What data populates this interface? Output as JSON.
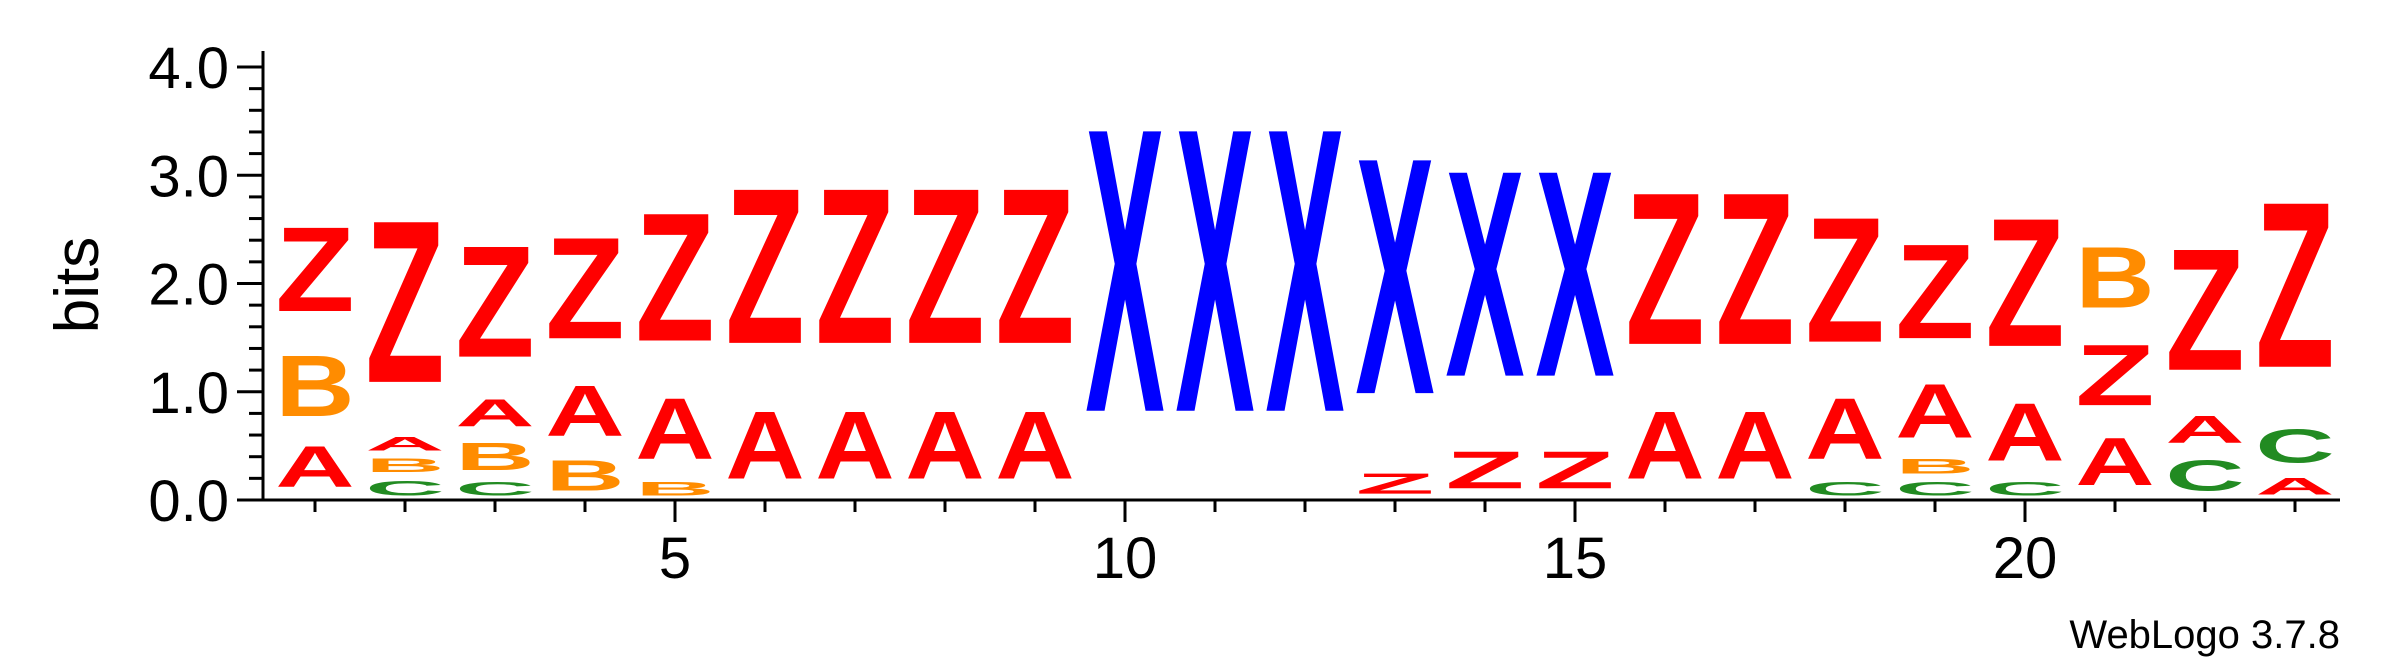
{
  "chart_data": {
    "type": "sequence-logo",
    "ylabel": "bits",
    "ylim": [
      0,
      4.0
    ],
    "y_ticks": [
      "0.0",
      "1.0",
      "2.0",
      "3.0",
      "4.0"
    ],
    "x_ticks": [
      5,
      10,
      15,
      20
    ],
    "x_range": [
      1,
      23
    ],
    "watermark": "WebLogo 3.7.8",
    "colors": {
      "A": "#ff0000",
      "Z": "#ff0000",
      "B": "#ff8c00",
      "C": "#228b22",
      "X": "#0000ff"
    },
    "positions": [
      {
        "pos": 1,
        "stack": [
          [
            "A",
            0.6
          ],
          [
            "B",
            0.9
          ],
          [
            "Z",
            1.25
          ]
        ]
      },
      {
        "pos": 2,
        "stack": [
          [
            "C",
            0.22
          ],
          [
            "B",
            0.2
          ],
          [
            "A",
            0.2
          ],
          [
            "Z",
            2.4
          ]
        ]
      },
      {
        "pos": 3,
        "stack": [
          [
            "C",
            0.2
          ],
          [
            "B",
            0.4
          ],
          [
            "A",
            0.4
          ],
          [
            "Z",
            1.65
          ]
        ]
      },
      {
        "pos": 4,
        "stack": [
          [
            "B",
            0.45
          ],
          [
            "A",
            0.75
          ],
          [
            "Z",
            1.5
          ]
        ]
      },
      {
        "pos": 5,
        "stack": [
          [
            "B",
            0.2
          ],
          [
            "A",
            0.9
          ],
          [
            "Z",
            1.9
          ]
        ]
      },
      {
        "pos": 6,
        "stack": [
          [
            "A",
            1.0
          ],
          [
            "Z",
            2.3
          ]
        ]
      },
      {
        "pos": 7,
        "stack": [
          [
            "A",
            1.0
          ],
          [
            "Z",
            2.3
          ]
        ]
      },
      {
        "pos": 8,
        "stack": [
          [
            "A",
            1.0
          ],
          [
            "Z",
            2.3
          ]
        ]
      },
      {
        "pos": 9,
        "stack": [
          [
            "A",
            1.0
          ],
          [
            "Z",
            2.3
          ]
        ]
      },
      {
        "pos": 10,
        "stack": [
          [
            "X",
            4.2
          ]
        ]
      },
      {
        "pos": 11,
        "stack": [
          [
            "X",
            4.2
          ]
        ]
      },
      {
        "pos": 12,
        "stack": [
          [
            "X",
            4.2
          ]
        ]
      },
      {
        "pos": 13,
        "stack": [
          [
            "Z",
            0.3
          ],
          [
            "X",
            3.5
          ]
        ]
      },
      {
        "pos": 14,
        "stack": [
          [
            "Z",
            0.55
          ],
          [
            "X",
            3.05
          ]
        ]
      },
      {
        "pos": 15,
        "stack": [
          [
            "Z",
            0.55
          ],
          [
            "X",
            3.05
          ]
        ]
      },
      {
        "pos": 16,
        "stack": [
          [
            "A",
            1.0
          ],
          [
            "Z",
            2.25
          ]
        ]
      },
      {
        "pos": 17,
        "stack": [
          [
            "A",
            1.0
          ],
          [
            "Z",
            2.25
          ]
        ]
      },
      {
        "pos": 18,
        "stack": [
          [
            "C",
            0.2
          ],
          [
            "A",
            0.9
          ],
          [
            "Z",
            1.85
          ]
        ]
      },
      {
        "pos": 19,
        "stack": [
          [
            "C",
            0.2
          ],
          [
            "B",
            0.22
          ],
          [
            "A",
            0.8
          ],
          [
            "Z",
            1.4
          ]
        ]
      },
      {
        "pos": 20,
        "stack": [
          [
            "C",
            0.2
          ],
          [
            "A",
            0.85
          ],
          [
            "Z",
            1.9
          ]
        ]
      },
      {
        "pos": 21,
        "stack": [
          [
            "A",
            0.7
          ],
          [
            "Z",
            0.9
          ],
          [
            "B",
            0.9
          ]
        ]
      },
      {
        "pos": 22,
        "stack": [
          [
            "C",
            0.45
          ],
          [
            "A",
            0.4
          ],
          [
            "Z",
            1.8
          ]
        ]
      },
      {
        "pos": 23,
        "stack": [
          [
            "A",
            0.25
          ],
          [
            "C",
            0.5
          ],
          [
            "Z",
            2.45
          ]
        ]
      }
    ]
  }
}
